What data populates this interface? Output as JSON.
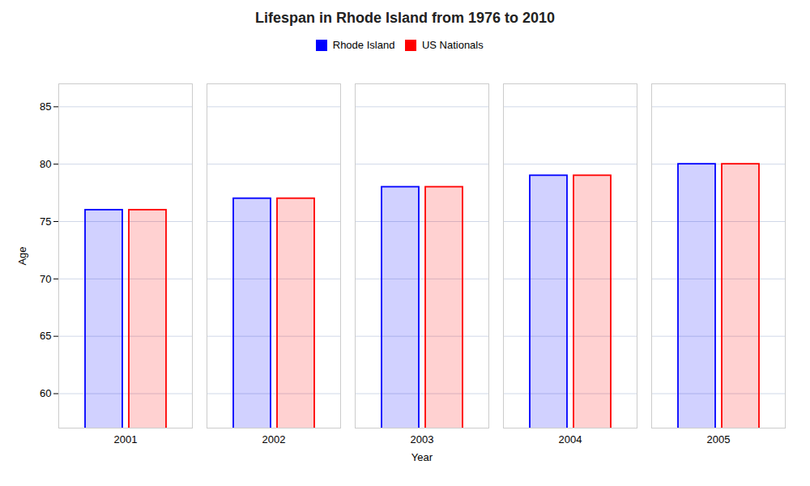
{
  "chart_data": {
    "type": "bar",
    "title": "Lifespan in Rhode Island from 1976 to 2010",
    "xlabel": "Year",
    "ylabel": "Age",
    "categories": [
      "2001",
      "2002",
      "2003",
      "2004",
      "2005"
    ],
    "series": [
      {
        "name": "Rhode Island",
        "color": "#0000ff",
        "values": [
          76.0,
          77.0,
          78.0,
          79.0,
          80.0
        ]
      },
      {
        "name": "US Nationals",
        "color": "#ff0000",
        "values": [
          76.0,
          77.0,
          78.0,
          79.0,
          80.0
        ]
      }
    ],
    "ylim": [
      57,
      87
    ],
    "yticks": [
      60,
      65,
      70,
      75,
      80,
      85
    ],
    "grid": true,
    "legend": "top"
  }
}
